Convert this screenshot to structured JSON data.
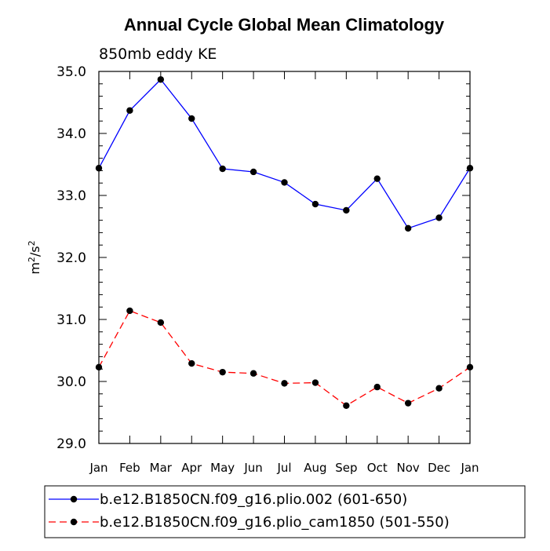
{
  "chart_data": {
    "type": "line",
    "title": "Annual Cycle Global Mean Climatology",
    "subtitle": "850mb eddy KE",
    "xlabel": "",
    "ylabel": "m²/s²",
    "ylabel_base": "m",
    "ylabel_exp1": "2",
    "ylabel_sep": "/s",
    "ylabel_exp2": "2",
    "categories": [
      "Jan",
      "Feb",
      "Mar",
      "Apr",
      "May",
      "Jun",
      "Jul",
      "Aug",
      "Sep",
      "Oct",
      "Nov",
      "Dec",
      "Jan"
    ],
    "ylim": [
      29.0,
      35.0
    ],
    "yticks": [
      "29.0",
      "30.0",
      "31.0",
      "32.0",
      "33.0",
      "34.0",
      "35.0"
    ],
    "series": [
      {
        "name": "b.e12.B1850CN.f09_g16.plio.002 (601-650)",
        "color": "#0000ff",
        "dash": "solid",
        "marker": "circle",
        "values": [
          33.44,
          34.37,
          34.87,
          34.24,
          33.43,
          33.38,
          33.21,
          32.86,
          32.76,
          33.27,
          32.47,
          32.64,
          33.44
        ]
      },
      {
        "name": "b.e12.B1850CN.f09_g16.plio_cam1850 (501-550)",
        "color": "#ff0000",
        "dash": "dashed",
        "marker": "circle",
        "values": [
          30.23,
          31.14,
          30.95,
          30.29,
          30.15,
          30.13,
          29.97,
          29.98,
          29.61,
          29.91,
          29.65,
          29.89,
          30.23
        ]
      }
    ],
    "legend": "bottom",
    "grid": false
  }
}
